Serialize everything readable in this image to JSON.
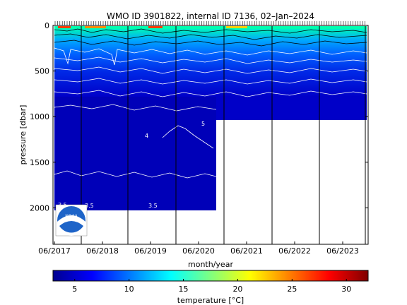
{
  "title": "WMO ID 3901822, internal ID 7136, 02–Jan–2024",
  "chart_data": {
    "type": "heatmap",
    "title": "WMO ID 3901822, internal ID 7136, 02–Jan–2024",
    "xlabel": "month/year",
    "ylabel": "pressure [dbar]",
    "x_ticks": [
      "06/2017",
      "06/2018",
      "06/2019",
      "06/2020",
      "06/2021",
      "06/2022",
      "06/2023"
    ],
    "y_ticks": [
      0,
      500,
      1000,
      1500,
      2000
    ],
    "y_range": [
      0,
      2400
    ],
    "y_inverted": true,
    "x_range": [
      "2017-06",
      "2023-12"
    ],
    "colorbar": {
      "label": "temperature [°C]",
      "ticks": [
        5,
        10,
        15,
        20,
        25,
        30
      ],
      "range": [
        3,
        32
      ],
      "colormap": "jet"
    },
    "profile_depth_dbar": [
      {
        "period": "2017-06 to 2020-08",
        "max_pressure": 2000
      },
      {
        "period": "2020-08 to 2023-12",
        "max_pressure": 1000
      }
    ],
    "isotherm_labels": [
      "3.5",
      "4",
      "5"
    ],
    "vertical_markers": [
      "2018-01",
      "2019-01",
      "2020-01",
      "2021-01",
      "2022-01",
      "2023-01",
      "2023-12"
    ]
  },
  "logo": {
    "text": "NOAA"
  },
  "colors": {
    "deep": "#0000b4",
    "mid": "#0050ff",
    "shallow": "#00e6c8",
    "surface": "#ff3c00"
  }
}
